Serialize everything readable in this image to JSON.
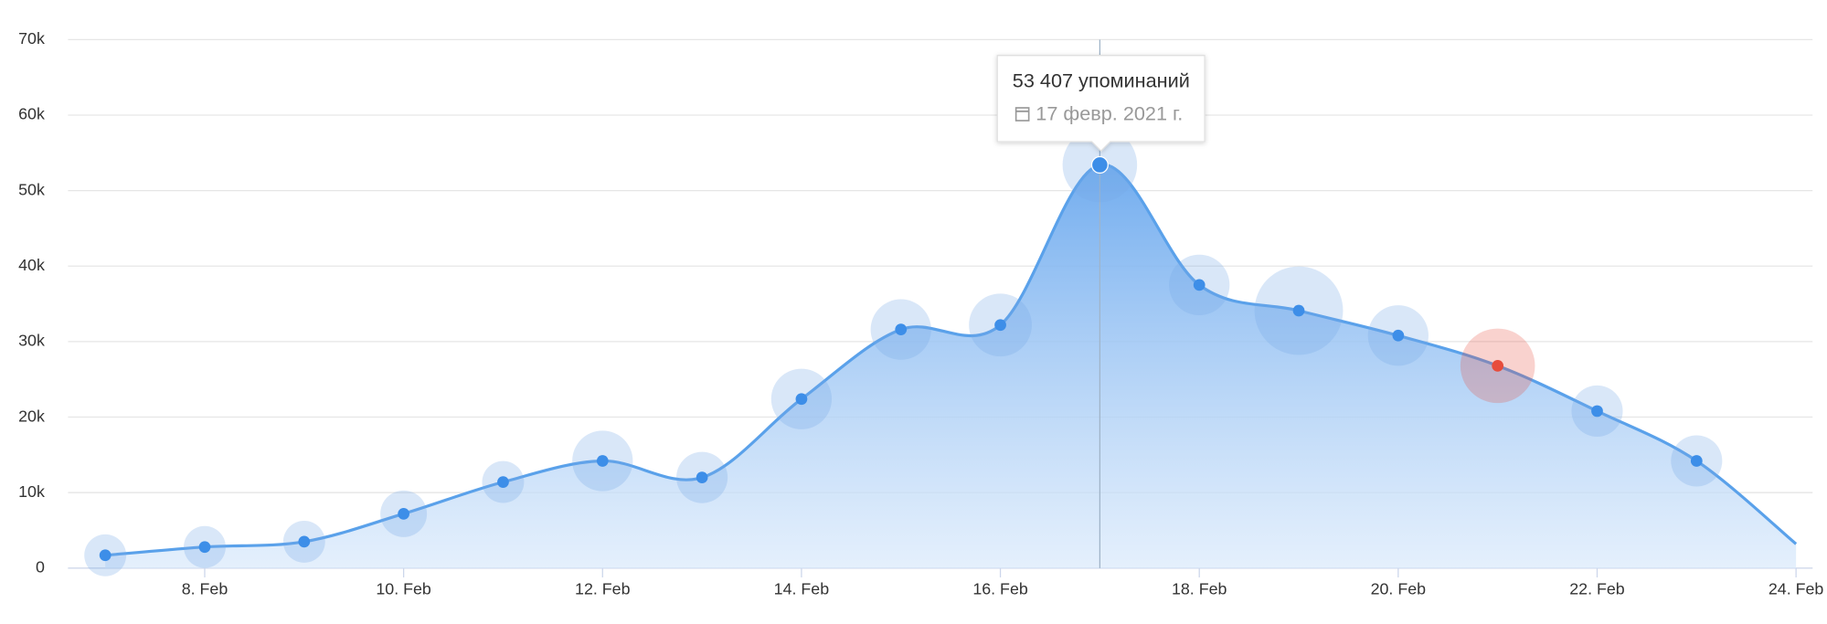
{
  "chart_data": {
    "type": "area",
    "categories": [
      null,
      "8. Feb",
      null,
      "10. Feb",
      null,
      "12. Feb",
      null,
      "14. Feb",
      null,
      "16. Feb",
      null,
      "18. Feb",
      null,
      "20. Feb",
      null,
      "22. Feb",
      null,
      "24. Feb"
    ],
    "series": [
      {
        "name": "упоминаний",
        "color": "#5aa1ea",
        "values": [
          1700,
          2800,
          3500,
          7200,
          11400,
          14200,
          12000,
          22400,
          31600,
          32200,
          53407,
          37500,
          34100,
          30800,
          26800,
          20800,
          14200,
          3200
        ],
        "value_labels": [
          null,
          null,
          null,
          null,
          null,
          null,
          null,
          null,
          null,
          null,
          "53 407 упоминаний",
          null,
          null,
          null,
          null,
          null,
          null,
          null
        ],
        "sizes": [
          18,
          18,
          18,
          20,
          18,
          26,
          22,
          26,
          26,
          27,
          32,
          26,
          38,
          26,
          32,
          22,
          22,
          null
        ],
        "point_colors": [
          "#3d8ee8",
          "#3d8ee8",
          "#3d8ee8",
          "#3d8ee8",
          "#3d8ee8",
          "#3d8ee8",
          "#3d8ee8",
          "#3d8ee8",
          "#3d8ee8",
          "#3d8ee8",
          "#3d8ee8",
          "#3d8ee8",
          "#3d8ee8",
          "#3d8ee8",
          "#e74c3c",
          "#3d8ee8",
          "#3d8ee8",
          null
        ]
      }
    ],
    "tooltip_date": "17 февр. 2021 г.",
    "ylim": [
      0,
      70000
    ],
    "yticks": [
      0,
      {
        "value": 10000,
        "label": "10k"
      },
      {
        "value": 20000,
        "label": "20k"
      },
      {
        "value": 30000,
        "label": "30k"
      },
      {
        "value": 40000,
        "label": "40k"
      },
      {
        "value": 50000,
        "label": "50k"
      },
      {
        "value": 60000,
        "label": "60k"
      },
      {
        "value": 70000,
        "label": "70k"
      }
    ],
    "grid": true
  }
}
